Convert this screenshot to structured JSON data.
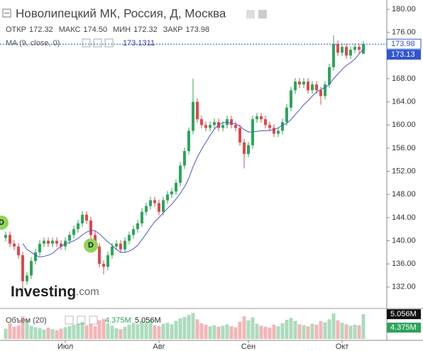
{
  "chart_data": {
    "type": "candlestick",
    "title": "Новолипецкий МК, Россия, Д, Москва",
    "header": [
      {
        "name": "ОТКР",
        "text": "172.32"
      },
      {
        "name": "МАКС",
        "text": "174.50"
      },
      {
        "name": "МИН",
        "text": "172.32"
      },
      {
        "name": "ЗАКР",
        "text": "173.98"
      }
    ],
    "categories": [
      null,
      null,
      null,
      null,
      null,
      null,
      null,
      null,
      null,
      null,
      null,
      null,
      null,
      null,
      "Июл",
      null,
      null,
      null,
      null,
      null,
      null,
      null,
      null,
      null,
      null,
      null,
      null,
      null,
      null,
      null,
      null,
      null,
      null,
      null,
      null,
      null,
      "Авг",
      null,
      null,
      null,
      null,
      null,
      null,
      null,
      null,
      null,
      null,
      null,
      null,
      null,
      null,
      null,
      null,
      null,
      null,
      null,
      null,
      "Сен",
      null,
      null,
      null,
      null,
      null,
      null,
      null,
      null,
      null,
      null,
      null,
      null,
      null,
      null,
      null,
      null,
      null,
      null,
      null,
      null,
      null,
      "Окт",
      null,
      null,
      null,
      null,
      null
    ],
    "open": [
      140.5,
      141,
      139.5,
      139,
      137.5,
      133,
      134,
      136.5,
      138,
      139.5,
      140,
      139.5,
      140,
      139.5,
      139,
      140,
      141,
      142,
      143,
      144.5,
      143.5,
      141,
      139,
      136,
      135.5,
      137.5,
      139,
      139.5,
      138.5,
      140,
      141,
      142,
      143,
      145,
      146,
      147,
      146.5,
      145,
      147,
      148,
      148.5,
      150,
      153,
      155.5,
      159,
      164,
      161,
      160,
      159.5,
      160,
      160.5,
      159.5,
      160,
      161,
      160,
      159.5,
      157,
      155,
      156.5,
      161,
      161.5,
      161,
      160,
      159.5,
      158.5,
      159,
      160.5,
      163,
      166,
      167.5,
      167,
      167.5,
      166,
      167,
      166,
      165,
      167,
      170,
      174,
      172.5,
      173.5,
      172,
      173,
      173.5,
      172.32
    ],
    "high": [
      141.6,
      141.6,
      140.1,
      139.6,
      138.1,
      134.6,
      137.1,
      138.6,
      140.1,
      140.6,
      140.6,
      140.6,
      140.6,
      140.1,
      140.6,
      141.6,
      142.6,
      143.6,
      145.1,
      145.1,
      144.1,
      141.6,
      139.6,
      136.6,
      138.1,
      139.6,
      140.1,
      140.1,
      140.6,
      141.6,
      142.6,
      143.6,
      145.6,
      146.6,
      147.6,
      147.6,
      147.1,
      147.6,
      148.6,
      149.1,
      150.6,
      153.6,
      156.1,
      159.6,
      168,
      164.6,
      161.6,
      160.6,
      160.6,
      161.1,
      161.1,
      160.6,
      161.6,
      161.6,
      160.6,
      160.1,
      157.6,
      157.1,
      161.6,
      162.1,
      162.1,
      161.6,
      160.6,
      160.1,
      159.6,
      161.1,
      163.6,
      166.6,
      168.1,
      168.1,
      168.1,
      168.1,
      167.6,
      167.6,
      166.6,
      167.6,
      170.6,
      175.5,
      174.6,
      174.1,
      174.1,
      173.6,
      174.1,
      174.1,
      174.5
    ],
    "low": [
      139.9,
      138.9,
      138.4,
      136.9,
      131.5,
      132.4,
      133.4,
      135.9,
      137.4,
      138.9,
      138.9,
      138.9,
      138.9,
      138.4,
      138.4,
      139.4,
      140.4,
      141.4,
      142.4,
      142.9,
      140.4,
      138.4,
      135.4,
      134.2,
      134.9,
      136.9,
      138.4,
      137.9,
      137.9,
      139.4,
      140.4,
      141.4,
      142.4,
      144.4,
      145.4,
      145.9,
      144.4,
      144.4,
      146.4,
      147.4,
      147.9,
      149.4,
      152.4,
      154.9,
      158.4,
      160.4,
      159.4,
      158.9,
      158.9,
      159.4,
      158.9,
      158.9,
      159.4,
      159.4,
      158.9,
      156.4,
      152.5,
      154.4,
      155.9,
      160.4,
      160.4,
      159.4,
      158.9,
      157.9,
      157.9,
      158.4,
      159.9,
      162.4,
      165.4,
      166.4,
      166.4,
      165.4,
      165.4,
      165.4,
      163.5,
      164.4,
      166.4,
      169.4,
      171.9,
      171.9,
      171.4,
      171.4,
      172.4,
      172.4,
      172.32
    ],
    "close": [
      141,
      139.5,
      139,
      137.5,
      133,
      134,
      136.5,
      138,
      139.5,
      140,
      139.5,
      140,
      139.5,
      139,
      140,
      141,
      142,
      143,
      144.5,
      143.5,
      141,
      139,
      136,
      135.5,
      137.5,
      139,
      139.5,
      138.5,
      140,
      141,
      142,
      143,
      145,
      146,
      147,
      146.5,
      145,
      147,
      148,
      148.5,
      150,
      153,
      155.5,
      159,
      164,
      161,
      160,
      159.5,
      160,
      160.5,
      159.5,
      160,
      161,
      160,
      159.5,
      157,
      155,
      156.5,
      161,
      161.5,
      161,
      160,
      159.5,
      158.5,
      159,
      160.5,
      163,
      166,
      167.5,
      167,
      167.5,
      166,
      167,
      166,
      165,
      167,
      170,
      174,
      172.5,
      173.5,
      172,
      173,
      173.5,
      173,
      173.98
    ],
    "colors": {
      "up": "#2ea55a",
      "down": "#e0474c",
      "ma": "#4a55c8",
      "price_tag": "#2f55d4"
    },
    "ma": {
      "name": "MA (9, close, 0)",
      "value_label": "173.1311",
      "axis_label": "173.13",
      "values": [
        null,
        null,
        null,
        null,
        139.5,
        138.5,
        138,
        137.5,
        137.2,
        137.3,
        137.5,
        137.8,
        138.5,
        139,
        139.5,
        139.7,
        140,
        140.4,
        141,
        141.5,
        141.8,
        141.7,
        141.2,
        140.5,
        139.8,
        139.2,
        138.5,
        138,
        138,
        138.2,
        138.6,
        139.2,
        140.2,
        141.2,
        142.3,
        143.3,
        144,
        144.8,
        145.6,
        146.3,
        147.2,
        148.2,
        149.3,
        150.8,
        152.8,
        154.4,
        155.8,
        157,
        158.2,
        159.3,
        160,
        160.4,
        160.5,
        160.3,
        160.2,
        159.8,
        159.2,
        158.8,
        158.8,
        158.9,
        159,
        159,
        159.1,
        159.2,
        159.5,
        160,
        160.3,
        160.9,
        161.8,
        162.6,
        163.5,
        164.2,
        165,
        165.7,
        166.1,
        166.5,
        167,
        168,
        168.8,
        169.6,
        170.3,
        170.8,
        171.4,
        172.3,
        173.1311
      ]
    },
    "ylim": [
      128.3,
      181.6
    ],
    "yticks": [
      {
        "value": 132,
        "label": "132.00"
      },
      {
        "value": 136,
        "label": "136.00"
      },
      {
        "value": 140,
        "label": "140.00"
      },
      {
        "value": 144,
        "label": "144.00"
      },
      {
        "value": 148,
        "label": "148.00"
      },
      {
        "value": 152,
        "label": "152.00"
      },
      {
        "value": 156,
        "label": "156.00"
      },
      {
        "value": 160,
        "label": "160.00"
      },
      {
        "value": 164,
        "label": "164.00"
      },
      {
        "value": 168,
        "label": "168.00"
      },
      {
        "value": 172,
        "label": "172.00"
      },
      {
        "value": 176,
        "label": "176.00"
      },
      {
        "value": 180,
        "label": "180.00"
      }
    ],
    "events": [
      {
        "at": -1,
        "text": "D"
      },
      {
        "at": 20,
        "text": "D"
      }
    ],
    "volume": {
      "name": "Объем (20)",
      "ma_label": "4.375M",
      "last_label": "5.056M",
      "ylim": [
        0,
        5.5
      ],
      "values": [
        2.1,
        3.2,
        2.5,
        2.8,
        4.6,
        3.9,
        2.7,
        2.4,
        2.2,
        1.9,
        2.3,
        2.0,
        1.8,
        2.1,
        2.4,
        2.6,
        2.9,
        3.1,
        3.5,
        2.8,
        3.0,
        2.6,
        3.8,
        4.1,
        3.2,
        2.7,
        2.2,
        2.0,
        2.5,
        2.9,
        3.3,
        3.0,
        3.6,
        3.4,
        3.9,
        2.8,
        2.6,
        3.1,
        3.3,
        3.0,
        3.7,
        4.2,
        4.5,
        4.9,
        5.3,
        4.0,
        3.2,
        2.9,
        2.6,
        2.8,
        2.5,
        2.7,
        3.0,
        2.6,
        2.4,
        3.5,
        4.6,
        3.8,
        4.4,
        3.1,
        2.7,
        2.5,
        2.3,
        2.9,
        2.6,
        3.2,
        3.9,
        4.3,
        3.7,
        3.0,
        2.8,
        2.6,
        3.1,
        2.9,
        3.6,
        3.4,
        4.0,
        5.2,
        3.8,
        3.3,
        3.0,
        2.7,
        2.9,
        2.8,
        5.056
      ]
    },
    "logo": {
      "main": "Investing",
      "suffix": ".com"
    }
  }
}
